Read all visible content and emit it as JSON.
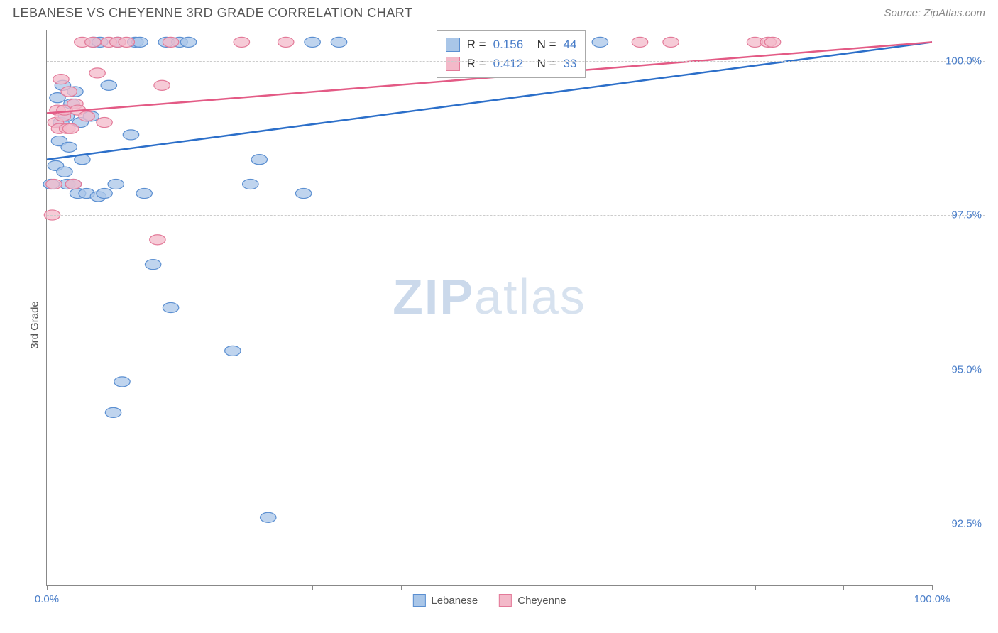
{
  "header": {
    "title": "LEBANESE VS CHEYENNE 3RD GRADE CORRELATION CHART",
    "source": "Source: ZipAtlas.com"
  },
  "chart": {
    "type": "scatter",
    "ylabel": "3rd Grade",
    "watermark_bold": "ZIP",
    "watermark_rest": "atlas",
    "background_color": "#ffffff",
    "grid_color": "#cccccc",
    "axis_color": "#888888",
    "xlim": [
      0,
      100
    ],
    "ylim": [
      91.5,
      100.5
    ],
    "xticks": [
      0,
      10,
      20,
      30,
      40,
      50,
      60,
      70,
      80,
      90,
      100
    ],
    "xtick_labels": {
      "0": "0.0%",
      "100": "100.0%"
    },
    "yticks": [
      92.5,
      95.0,
      97.5,
      100.0
    ],
    "ytick_labels": [
      "92.5%",
      "95.0%",
      "97.5%",
      "100.0%"
    ],
    "series": [
      {
        "name": "Lebanese",
        "marker_fill": "#a9c6e8",
        "marker_stroke": "#5b8fd1",
        "marker_opacity": 0.75,
        "marker_radius": 9,
        "line_color": "#2c6fc9",
        "line_width": 2.5,
        "R": "0.156",
        "N": "44",
        "trend": {
          "x1": 0,
          "y1": 98.4,
          "x2": 100,
          "y2": 100.3
        },
        "points": [
          [
            0.5,
            98.0
          ],
          [
            1.0,
            98.3
          ],
          [
            1.2,
            99.4
          ],
          [
            1.4,
            98.7
          ],
          [
            1.6,
            99.0
          ],
          [
            1.8,
            99.6
          ],
          [
            2.0,
            98.2
          ],
          [
            2.2,
            99.1
          ],
          [
            2.3,
            98.0
          ],
          [
            2.5,
            98.6
          ],
          [
            2.8,
            99.3
          ],
          [
            3.0,
            98.0
          ],
          [
            3.2,
            99.5
          ],
          [
            3.5,
            97.85
          ],
          [
            3.8,
            99.0
          ],
          [
            4.0,
            98.4
          ],
          [
            4.5,
            97.85
          ],
          [
            5.0,
            99.1
          ],
          [
            5.3,
            100.3
          ],
          [
            5.8,
            97.8
          ],
          [
            6.0,
            100.3
          ],
          [
            6.5,
            97.85
          ],
          [
            7.0,
            99.6
          ],
          [
            7.5,
            94.3
          ],
          [
            7.8,
            98.0
          ],
          [
            8.0,
            100.3
          ],
          [
            8.5,
            94.8
          ],
          [
            9.5,
            98.8
          ],
          [
            10.0,
            100.3
          ],
          [
            10.5,
            100.3
          ],
          [
            11.0,
            97.85
          ],
          [
            12.0,
            96.7
          ],
          [
            13.5,
            100.3
          ],
          [
            14.0,
            96.0
          ],
          [
            15.0,
            100.3
          ],
          [
            16.0,
            100.3
          ],
          [
            21.0,
            95.3
          ],
          [
            23.0,
            98.0
          ],
          [
            24.0,
            98.4
          ],
          [
            25.0,
            92.6
          ],
          [
            29.0,
            97.85
          ],
          [
            30.0,
            100.3
          ],
          [
            33.0,
            100.3
          ],
          [
            62.5,
            100.3
          ]
        ]
      },
      {
        "name": "Cheyenne",
        "marker_fill": "#f3b9c9",
        "marker_stroke": "#e37a99",
        "marker_opacity": 0.75,
        "marker_radius": 9,
        "line_color": "#e35a85",
        "line_width": 2.5,
        "R": "0.412",
        "N": "33",
        "trend": {
          "x1": 0,
          "y1": 99.15,
          "x2": 100,
          "y2": 100.3
        },
        "points": [
          [
            0.6,
            97.5
          ],
          [
            0.8,
            98.0
          ],
          [
            1.0,
            99.0
          ],
          [
            1.2,
            99.2
          ],
          [
            1.4,
            98.9
          ],
          [
            1.6,
            99.7
          ],
          [
            1.8,
            99.1
          ],
          [
            2.0,
            99.2
          ],
          [
            2.3,
            98.9
          ],
          [
            2.5,
            99.5
          ],
          [
            2.7,
            98.9
          ],
          [
            3.0,
            98.0
          ],
          [
            3.2,
            99.3
          ],
          [
            3.5,
            99.2
          ],
          [
            4.0,
            100.3
          ],
          [
            4.5,
            99.1
          ],
          [
            5.2,
            100.3
          ],
          [
            5.7,
            99.8
          ],
          [
            6.5,
            99.0
          ],
          [
            7.0,
            100.3
          ],
          [
            8.0,
            100.3
          ],
          [
            9.0,
            100.3
          ],
          [
            12.5,
            97.1
          ],
          [
            13.0,
            99.6
          ],
          [
            14.0,
            100.3
          ],
          [
            22.0,
            100.3
          ],
          [
            27.0,
            100.3
          ],
          [
            57.0,
            100.3
          ],
          [
            67.0,
            100.3
          ],
          [
            70.5,
            100.3
          ],
          [
            80.0,
            100.3
          ],
          [
            81.5,
            100.3
          ],
          [
            82.0,
            100.3
          ]
        ]
      }
    ],
    "bottom_legend": [
      {
        "label": "Lebanese",
        "fill": "#a9c6e8",
        "stroke": "#5b8fd1"
      },
      {
        "label": "Cheyenne",
        "fill": "#f3b9c9",
        "stroke": "#e37a99"
      }
    ]
  }
}
